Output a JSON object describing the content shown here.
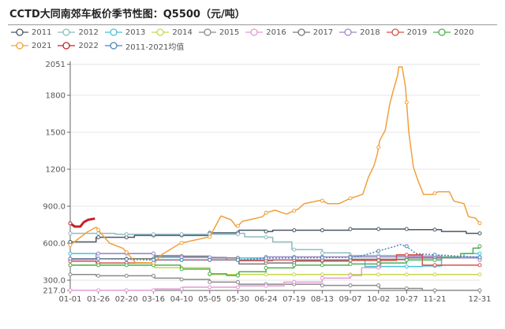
{
  "title": "CCTD大同南郊车板价季节性图：Q5500（元/吨）",
  "chart_data": {
    "type": "line",
    "title": "CCTD大同南郊车板价季节性图：Q5500（元/吨）",
    "x_tick_labels": [
      "01-01",
      "01-26",
      "02-20",
      "03-16",
      "04-10",
      "05-05",
      "05-30",
      "06-24",
      "07-19",
      "08-13",
      "09-07",
      "10-02",
      "10-27",
      "11-21",
      "12-31"
    ],
    "x_tick_days": [
      0,
      25,
      50,
      74,
      99,
      124,
      149,
      174,
      199,
      224,
      249,
      274,
      299,
      324,
      364
    ],
    "y_tick_labels": [
      "217.0",
      "300.0",
      "600.0",
      "900.0",
      "1200",
      "1500",
      "1800",
      "2051"
    ],
    "ylim": [
      217,
      2051
    ],
    "grid": true,
    "legend_position": "top",
    "series": [
      {
        "name": "2011",
        "color": "#4a5866",
        "step": true,
        "points": [
          [
            0,
            610
          ],
          [
            23,
            648
          ],
          [
            57,
            663
          ],
          [
            124,
            684
          ],
          [
            150,
            705
          ],
          [
            174,
            695
          ],
          [
            180,
            705
          ],
          [
            249,
            715
          ],
          [
            300,
            710
          ],
          [
            330,
            695
          ],
          [
            352,
            680
          ],
          [
            364,
            680
          ]
        ]
      },
      {
        "name": "2012",
        "color": "#8dbcc4",
        "step": true,
        "points": [
          [
            0,
            680
          ],
          [
            40,
            673
          ],
          [
            150,
            680
          ],
          [
            155,
            652
          ],
          [
            174,
            648
          ],
          [
            180,
            610
          ],
          [
            197,
            548
          ],
          [
            224,
            522
          ],
          [
            249,
            500
          ],
          [
            300,
            495
          ],
          [
            330,
            490
          ],
          [
            364,
            485
          ]
        ]
      },
      {
        "name": "2013",
        "color": "#45c1da",
        "step": true,
        "points": [
          [
            0,
            516
          ],
          [
            75,
            485
          ],
          [
            130,
            480
          ],
          [
            174,
            464
          ],
          [
            262,
            411
          ],
          [
            313,
            416
          ],
          [
            330,
            480
          ],
          [
            350,
            516
          ],
          [
            364,
            516
          ]
        ]
      },
      {
        "name": "2014",
        "color": "#c9d64e",
        "step": true,
        "points": [
          [
            0,
            422
          ],
          [
            75,
            401
          ],
          [
            124,
            346
          ],
          [
            364,
            346
          ]
        ]
      },
      {
        "name": "2015",
        "color": "#8a8a8a",
        "step": true,
        "points": [
          [
            0,
            346
          ],
          [
            23,
            336
          ],
          [
            75,
            317
          ],
          [
            98,
            306
          ],
          [
            124,
            285
          ],
          [
            150,
            267
          ],
          [
            224,
            258
          ],
          [
            275,
            233
          ],
          [
            313,
            218
          ],
          [
            364,
            218
          ]
        ]
      },
      {
        "name": "2016",
        "color": "#e39ad6",
        "step": true,
        "points": [
          [
            0,
            218
          ],
          [
            75,
            229
          ],
          [
            100,
            243
          ],
          [
            150,
            254
          ],
          [
            190,
            285
          ],
          [
            224,
            317
          ],
          [
            249,
            338
          ],
          [
            259,
            401
          ],
          [
            276,
            464
          ],
          [
            299,
            485
          ],
          [
            364,
            485
          ]
        ]
      },
      {
        "name": "2017",
        "color": "#777777",
        "step": true,
        "points": [
          [
            0,
            474
          ],
          [
            75,
            495
          ],
          [
            124,
            480
          ],
          [
            150,
            432
          ],
          [
            174,
            440
          ],
          [
            200,
            455
          ],
          [
            249,
            470
          ],
          [
            300,
            480
          ],
          [
            364,
            474
          ]
        ]
      },
      {
        "name": "2018",
        "color": "#a08ac6",
        "step": true,
        "points": [
          [
            0,
            468
          ],
          [
            23,
            516
          ],
          [
            75,
            500
          ],
          [
            98,
            485
          ],
          [
            139,
            464
          ],
          [
            174,
            489
          ],
          [
            249,
            489
          ],
          [
            299,
            495
          ],
          [
            330,
            480
          ],
          [
            364,
            464
          ]
        ]
      },
      {
        "name": "2019",
        "color": "#d7504c",
        "step": true,
        "points": [
          [
            0,
            454
          ],
          [
            23,
            440
          ],
          [
            75,
            464
          ],
          [
            150,
            458
          ],
          [
            180,
            464
          ],
          [
            249,
            460
          ],
          [
            290,
            506
          ],
          [
            313,
            422
          ],
          [
            364,
            422
          ]
        ]
      },
      {
        "name": "2020",
        "color": "#4caf50",
        "step": true,
        "points": [
          [
            0,
            422
          ],
          [
            75,
            422
          ],
          [
            98,
            390
          ],
          [
            124,
            352
          ],
          [
            139,
            338
          ],
          [
            150,
            369
          ],
          [
            174,
            400
          ],
          [
            199,
            422
          ],
          [
            249,
            432
          ],
          [
            276,
            440
          ],
          [
            299,
            464
          ],
          [
            330,
            485
          ],
          [
            347,
            516
          ],
          [
            358,
            560
          ],
          [
            364,
            575
          ]
        ]
      },
      {
        "name": "2021",
        "color": "#f0a03c",
        "step": false,
        "points": [
          [
            0,
            585
          ],
          [
            15,
            690
          ],
          [
            23,
            730
          ],
          [
            30,
            652
          ],
          [
            35,
            600
          ],
          [
            47,
            558
          ],
          [
            52,
            506
          ],
          [
            58,
            443
          ],
          [
            75,
            440
          ],
          [
            81,
            506
          ],
          [
            98,
            600
          ],
          [
            124,
            652
          ],
          [
            134,
            821
          ],
          [
            143,
            790
          ],
          [
            148,
            730
          ],
          [
            153,
            777
          ],
          [
            161,
            794
          ],
          [
            171,
            815
          ],
          [
            174,
            847
          ],
          [
            182,
            868
          ],
          [
            192,
            836
          ],
          [
            203,
            879
          ],
          [
            208,
            921
          ],
          [
            223,
            949
          ],
          [
            229,
            921
          ],
          [
            239,
            921
          ],
          [
            249,
            964
          ],
          [
            260,
            996
          ],
          [
            265,
            1134
          ],
          [
            270,
            1229
          ],
          [
            273,
            1325
          ],
          [
            275,
            1431
          ],
          [
            280,
            1516
          ],
          [
            284,
            1728
          ],
          [
            287,
            1834
          ],
          [
            291,
            1962
          ],
          [
            292,
            2030
          ],
          [
            295,
            2030
          ],
          [
            298,
            1866
          ],
          [
            301,
            1495
          ],
          [
            305,
            1218
          ],
          [
            309,
            1111
          ],
          [
            314,
            996
          ],
          [
            322,
            996
          ],
          [
            327,
            1017
          ],
          [
            337,
            1017
          ],
          [
            341,
            942
          ],
          [
            350,
            921
          ],
          [
            354,
            815
          ],
          [
            360,
            804
          ],
          [
            364,
            762
          ]
        ]
      },
      {
        "name": "2022",
        "color": "#c8202a",
        "step": false,
        "width": 3,
        "points": [
          [
            0,
            761
          ],
          [
            4,
            735
          ],
          [
            9,
            735
          ],
          [
            12,
            770
          ],
          [
            16,
            790
          ],
          [
            22,
            800
          ]
        ]
      },
      {
        "name": "2011-2021均值",
        "color": "#4a85b8",
        "step": false,
        "dashed": true,
        "points": [
          [
            0,
            474
          ],
          [
            23,
            474
          ],
          [
            50,
            470
          ],
          [
            75,
            464
          ],
          [
            124,
            464
          ],
          [
            150,
            464
          ],
          [
            174,
            478
          ],
          [
            249,
            485
          ],
          [
            260,
            500
          ],
          [
            274,
            537
          ],
          [
            289,
            575
          ],
          [
            293,
            590
          ],
          [
            299,
            575
          ],
          [
            307,
            516
          ],
          [
            324,
            506
          ],
          [
            364,
            485
          ]
        ]
      }
    ]
  }
}
